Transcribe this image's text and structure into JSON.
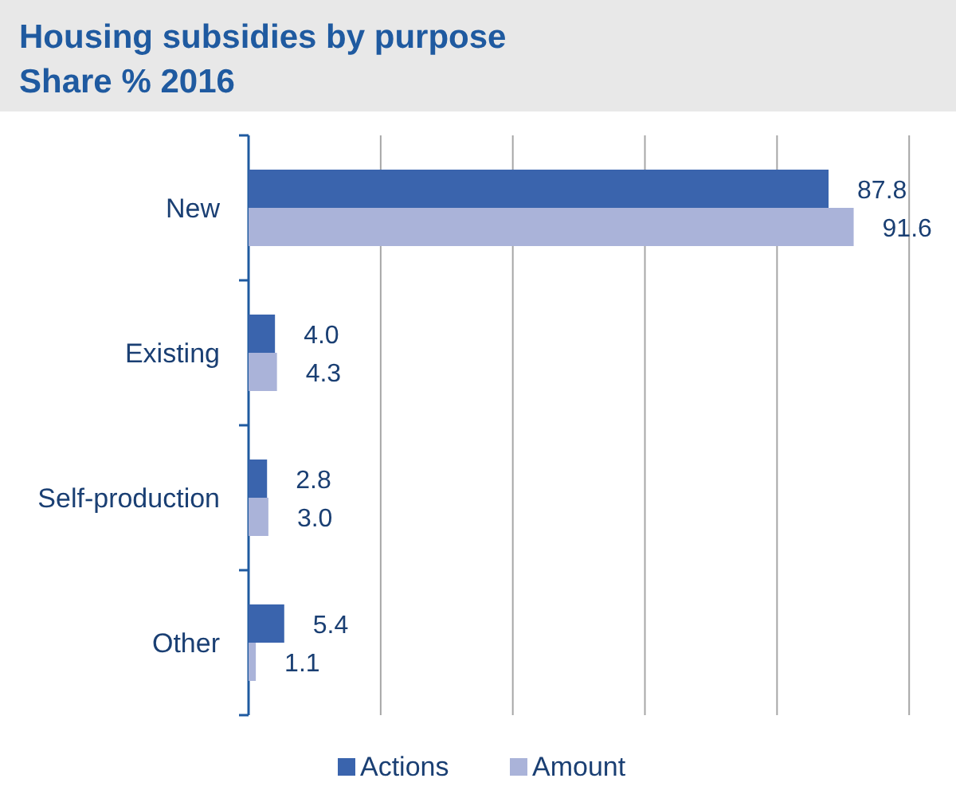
{
  "chart_data": {
    "type": "bar",
    "orientation": "horizontal",
    "title": "Housing subsidies by purpose",
    "subtitle": "Share % 2016",
    "categories": [
      "New",
      "Existing",
      "Self-production",
      "Other"
    ],
    "series": [
      {
        "name": "Actions",
        "color": "#3a64ad",
        "values": [
          87.8,
          4.0,
          2.8,
          5.4
        ],
        "value_labels": [
          "87.8",
          "4.0",
          "2.8",
          "5.4"
        ]
      },
      {
        "name": "Amount",
        "color": "#aab3d9",
        "values": [
          91.6,
          4.3,
          3.0,
          1.1
        ],
        "value_labels": [
          "91.6",
          "4.3",
          "3.0",
          "1.1"
        ]
      }
    ],
    "xlim": [
      0,
      100
    ],
    "xticks": [
      {
        "value": 0,
        "label": null
      },
      {
        "value": 20,
        "label": null
      },
      {
        "value": 40,
        "label": null
      },
      {
        "value": 60,
        "label": null
      },
      {
        "value": 80,
        "label": null
      },
      {
        "value": 100,
        "label": null
      }
    ],
    "tick_labels": "y",
    "grid": "x",
    "legend": "bottom"
  }
}
